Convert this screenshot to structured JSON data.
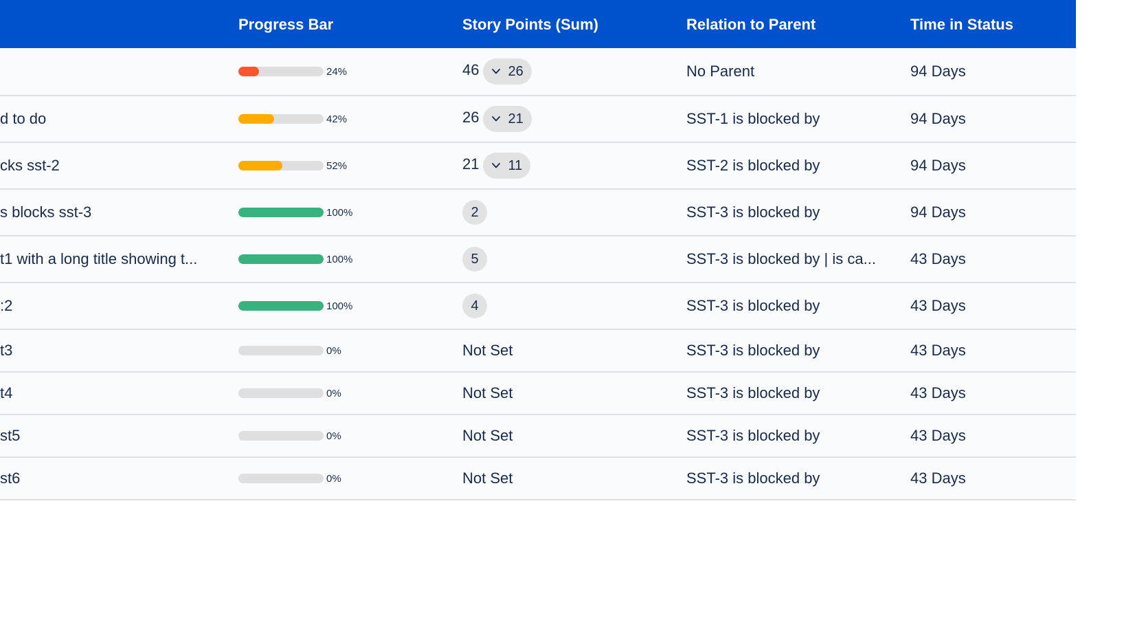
{
  "colors": {
    "header_bg": "#0052cc",
    "red": "#ff5630",
    "yellow": "#ffab00",
    "green": "#36b37e",
    "track": "#dfdfdf"
  },
  "header": {
    "progress": "Progress Bar",
    "points": "Story Points (Sum)",
    "relation": "Relation to Parent",
    "time": "Time in Status"
  },
  "rows": [
    {
      "summary": "",
      "progress": 0.24,
      "pct": "24%",
      "color": "red",
      "points_num": "46",
      "points_pill": "26",
      "relation": "No Parent",
      "time": "94 Days"
    },
    {
      "summary": "d to do",
      "progress": 0.42,
      "pct": "42%",
      "color": "yellow",
      "points_num": "26",
      "points_pill": "21",
      "relation": "SST-1 is blocked by",
      "time": "94 Days"
    },
    {
      "summary": "cks sst-2",
      "progress": 0.52,
      "pct": "52%",
      "color": "yellow",
      "points_num": "21",
      "points_pill": "11",
      "relation": "SST-2 is blocked by",
      "time": "94 Days"
    },
    {
      "summary": "s blocks sst-3",
      "progress": 1.0,
      "pct": "100%",
      "color": "green",
      "points_circle": "2",
      "relation": "SST-3 is blocked by",
      "time": "94 Days"
    },
    {
      "summary": "t1 with a long title showing t...",
      "progress": 1.0,
      "pct": "100%",
      "color": "green",
      "points_circle": "5",
      "relation": "SST-3 is blocked by | is ca...",
      "time": "43 Days"
    },
    {
      "summary": ":2",
      "progress": 1.0,
      "pct": "100%",
      "color": "green",
      "points_circle": "4",
      "relation": "SST-3 is blocked by",
      "time": "43 Days"
    },
    {
      "summary": "t3",
      "progress": 0,
      "pct": "0%",
      "color": "green",
      "points_text": "Not Set",
      "relation": "SST-3 is blocked by",
      "time": "43 Days"
    },
    {
      "summary": "t4",
      "progress": 0,
      "pct": "0%",
      "color": "green",
      "points_text": "Not Set",
      "relation": "SST-3 is blocked by",
      "time": "43 Days"
    },
    {
      "summary": "st5",
      "progress": 0,
      "pct": "0%",
      "color": "green",
      "points_text": "Not Set",
      "relation": "SST-3 is blocked by",
      "time": "43 Days"
    },
    {
      "summary": "st6",
      "progress": 0,
      "pct": "0%",
      "color": "green",
      "points_text": "Not Set",
      "relation": "SST-3 is blocked by",
      "time": "43 Days"
    }
  ]
}
